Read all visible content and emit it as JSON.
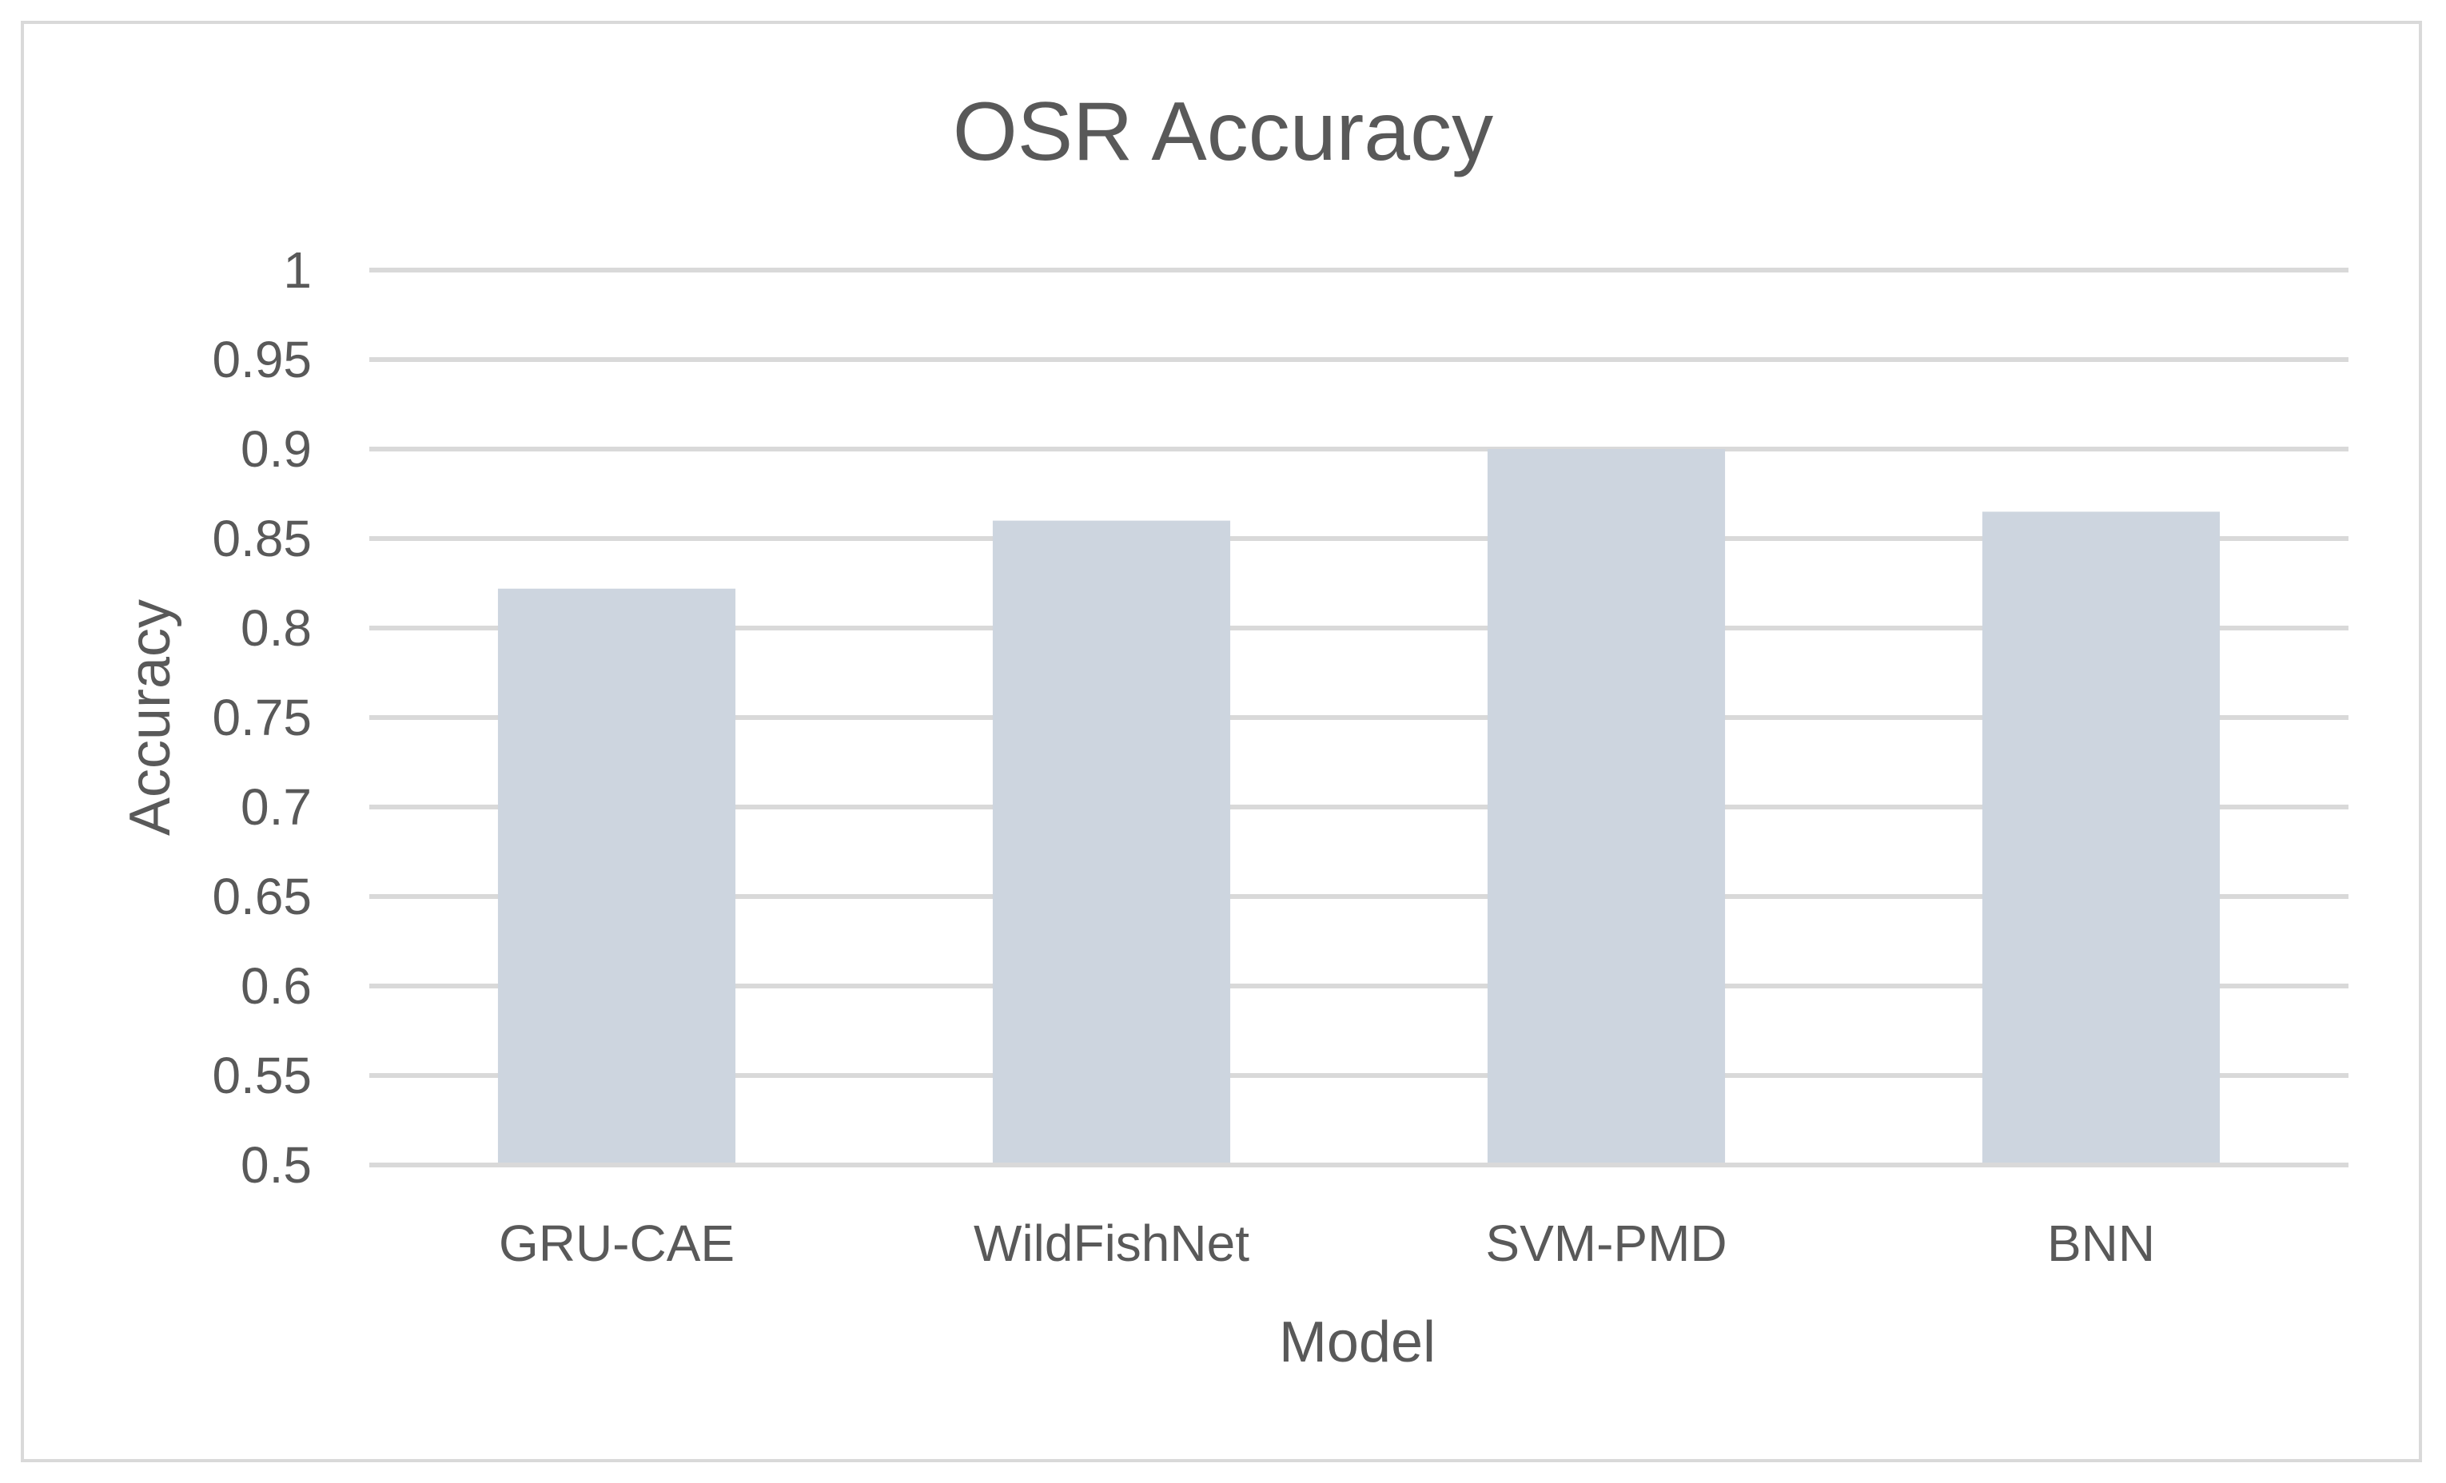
{
  "chart_data": {
    "type": "bar",
    "title": "OSR Accuracy",
    "xlabel": "Model",
    "ylabel": "Accuracy",
    "categories": [
      "GRU-CAE",
      "WildFishNet",
      "SVM-PMD",
      "BNN"
    ],
    "values": [
      0.822,
      0.86,
      0.9,
      0.865
    ],
    "ylim": [
      0.5,
      1
    ],
    "yticks": [
      "0.5",
      "0.55",
      "0.6",
      "0.65",
      "0.7",
      "0.75",
      "0.8",
      "0.85",
      "0.9",
      "0.95",
      "1"
    ],
    "grid": true,
    "legend": "none",
    "bar_color": "#cdd5df",
    "grid_color": "#d9d9d9"
  }
}
